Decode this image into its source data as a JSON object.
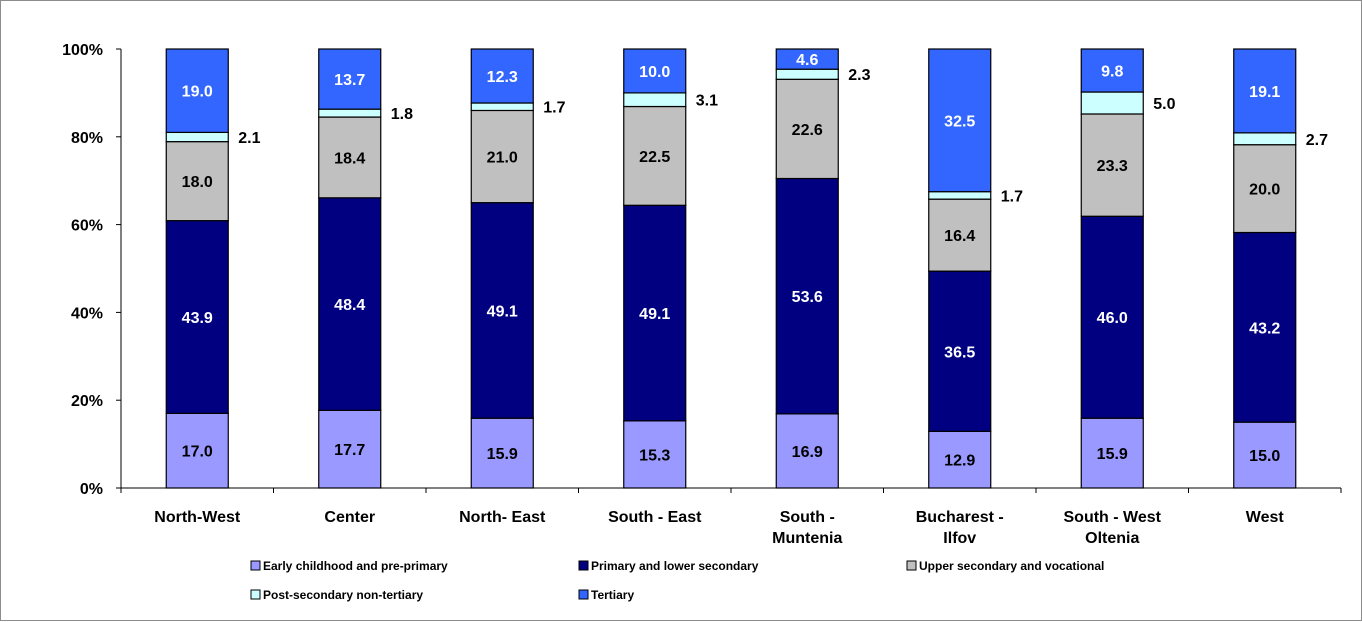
{
  "chart_data": {
    "type": "bar",
    "stacked": true,
    "percent": true,
    "categories": [
      [
        "North-West"
      ],
      [
        "Center"
      ],
      [
        "North- East"
      ],
      [
        "South - East"
      ],
      [
        "South -",
        "Muntenia"
      ],
      [
        "Bucharest -",
        "Ilfov"
      ],
      [
        "South - West",
        "Oltenia"
      ],
      [
        "West"
      ]
    ],
    "series": [
      {
        "name": "Early childhood and pre-primary",
        "color": "#9999ff",
        "label_color": "#000000",
        "values": [
          17.0,
          17.7,
          15.9,
          15.3,
          16.9,
          12.9,
          15.9,
          15.0
        ],
        "labels": [
          "17.0",
          "17.7",
          "15.9",
          "15.3",
          "16.9",
          "12.9",
          "15.9",
          "15.0"
        ]
      },
      {
        "name": "Primary and lower secondary",
        "color": "#000080",
        "label_color": "#ffffff",
        "values": [
          43.9,
          48.4,
          49.1,
          49.1,
          53.6,
          36.5,
          46.0,
          43.2
        ],
        "labels": [
          "43.9",
          "48.4",
          "49.1",
          "49.1",
          "53.6",
          "36.5",
          "46.0",
          "43.2"
        ]
      },
      {
        "name": "Upper secondary and vocational",
        "color": "#c0c0c0",
        "label_color": "#000000",
        "values": [
          18.0,
          18.4,
          21.0,
          22.5,
          22.6,
          16.4,
          23.3,
          20.0
        ],
        "labels": [
          "18.0",
          "18.4",
          "21.0",
          "22.5",
          "22.6",
          "16.4",
          "23.3",
          "20.0"
        ]
      },
      {
        "name": "Post-secondary non-tertiary",
        "color": "#ccffff",
        "label_color": "#000000",
        "values": [
          2.1,
          1.8,
          1.7,
          3.1,
          2.3,
          1.7,
          5.0,
          2.7
        ],
        "labels": [
          "2.1",
          "1.8",
          "1.7",
          "3.1",
          "2.3",
          "1.7",
          "5.0",
          "2.7"
        ]
      },
      {
        "name": "Tertiary",
        "color": "#3366ff",
        "label_color": "#ffffff",
        "values": [
          19.0,
          13.7,
          12.3,
          10.0,
          4.6,
          32.5,
          9.8,
          19.1
        ],
        "labels": [
          "19.0",
          "13.7",
          "12.3",
          "10.0",
          "4.6",
          "32.5",
          "9.8",
          "19.1"
        ]
      }
    ],
    "y_ticks": [
      "0%",
      "20%",
      "40%",
      "60%",
      "80%",
      "100%"
    ],
    "ylim": [
      0,
      100
    ],
    "grid": false,
    "legend_position": "bottom",
    "title": "",
    "xlabel": "",
    "ylabel": ""
  }
}
